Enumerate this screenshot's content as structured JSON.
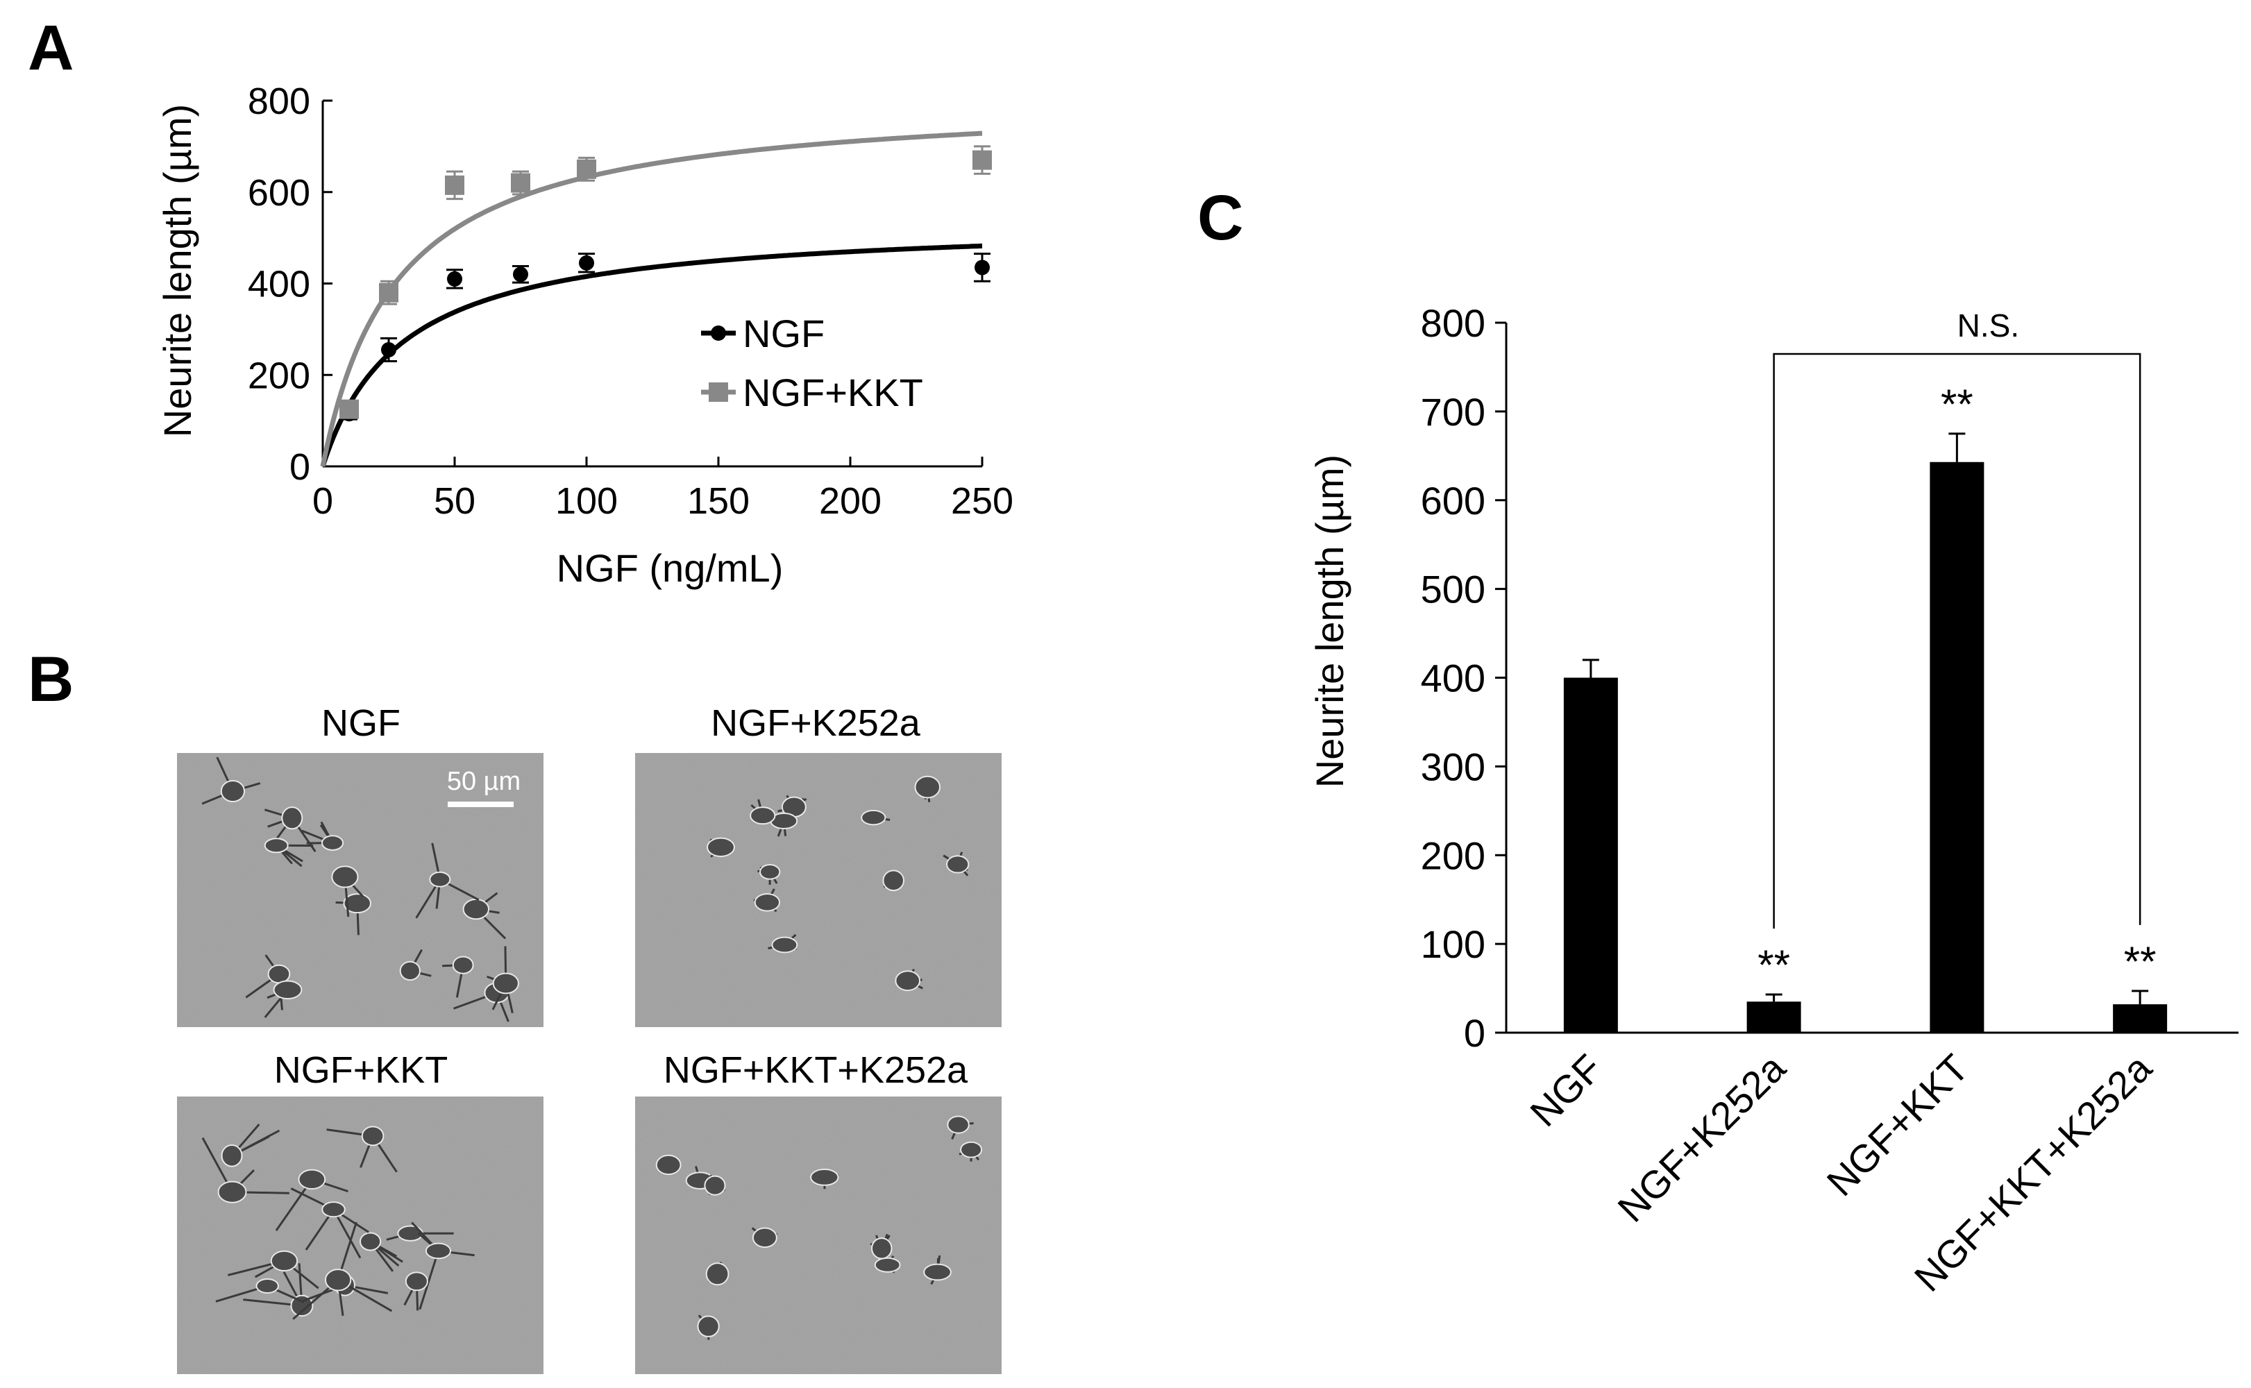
{
  "panels": {
    "a": "A",
    "b": "B",
    "c": "C"
  },
  "chart_data": [
    {
      "panel": "A",
      "type": "scatter",
      "xlabel": "NGF (ng/mL)",
      "ylabel": "Neurite length (µm)",
      "xlim": [
        0,
        250
      ],
      "ylim": [
        0,
        800
      ],
      "xticks": [
        0,
        50,
        100,
        150,
        200,
        250
      ],
      "yticks": [
        0,
        200,
        400,
        600,
        800
      ],
      "fit_curve": "hyperbolic saturation",
      "legend_position": "center-right",
      "series": [
        {
          "name": "NGF",
          "marker": "circle",
          "color": "#000000",
          "x": [
            10,
            25,
            50,
            75,
            100,
            250
          ],
          "y": [
            115,
            255,
            410,
            420,
            445,
            435
          ],
          "err": [
            12,
            25,
            20,
            18,
            20,
            30
          ],
          "fit": {
            "vmax": 540,
            "km": 30
          }
        },
        {
          "name": "NGF+KKT",
          "marker": "square",
          "color": "#888888",
          "x": [
            10,
            25,
            50,
            75,
            100,
            250
          ],
          "y": [
            125,
            380,
            615,
            620,
            650,
            670
          ],
          "err": [
            12,
            25,
            30,
            25,
            25,
            30
          ],
          "fit": {
            "vmax": 810,
            "km": 28
          }
        }
      ]
    },
    {
      "panel": "C",
      "type": "bar",
      "xlabel": "",
      "ylabel": "Neurite length (µm)",
      "ylim": [
        0,
        800
      ],
      "yticks": [
        0,
        100,
        200,
        300,
        400,
        500,
        600,
        700,
        800
      ],
      "categories": [
        "NGF",
        "NGF+K252a",
        "NGF+KKT",
        "NGF+KKT+K252a"
      ],
      "values": [
        400,
        35,
        643,
        32
      ],
      "errors": [
        20,
        8,
        32,
        15
      ],
      "significance": [
        "",
        "**",
        "**",
        "**"
      ],
      "comparison": {
        "from": 1,
        "to": 3,
        "label": "N.S."
      },
      "color": "#000000"
    }
  ],
  "micrographs": {
    "labels": [
      "NGF",
      "NGF+K252a",
      "NGF+KKT",
      "NGF+KKT+K252a"
    ],
    "scale_bar": "50 µm"
  }
}
